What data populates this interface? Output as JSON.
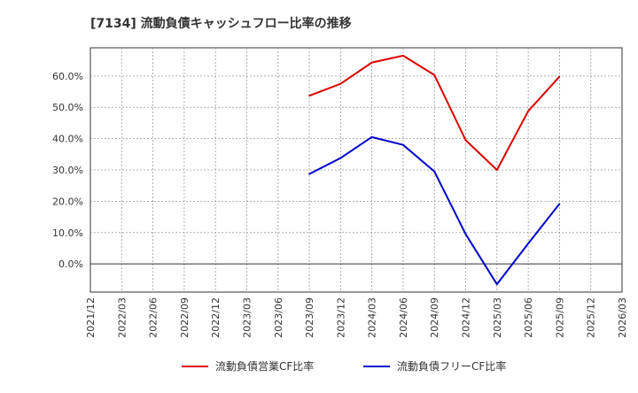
{
  "chart_data": {
    "type": "line",
    "title": "[7134]  流動負債キャッシュフロー比率の推移",
    "xlabel": "",
    "ylabel": "",
    "x_ticks": [
      "2021/12",
      "2022/03",
      "2022/06",
      "2022/09",
      "2022/12",
      "2023/03",
      "2023/06",
      "2023/09",
      "2023/12",
      "2024/03",
      "2024/06",
      "2024/09",
      "2024/12",
      "2025/03",
      "2025/06",
      "2025/09",
      "2025/12",
      "2026/03"
    ],
    "y_ticks": [
      "0.0%",
      "10.0%",
      "20.0%",
      "30.0%",
      "40.0%",
      "50.0%",
      "60.0%"
    ],
    "y_tick_values": [
      0,
      10,
      20,
      30,
      40,
      50,
      60
    ],
    "ylim": [
      -9,
      69
    ],
    "grid": true,
    "legend_position": "bottom",
    "series": [
      {
        "name": "流動負債営業CF比率",
        "color": "#dd0000",
        "points": [
          {
            "x": "2023/09",
            "y": 53.7
          },
          {
            "x": "2023/12",
            "y": 57.5
          },
          {
            "x": "2024/03",
            "y": 64.3
          },
          {
            "x": "2024/06",
            "y": 66.5
          },
          {
            "x": "2024/09",
            "y": 60.3
          },
          {
            "x": "2024/12",
            "y": 39.5
          },
          {
            "x": "2025/03",
            "y": 30.0
          },
          {
            "x": "2025/06",
            "y": 48.8
          },
          {
            "x": "2025/09",
            "y": 59.8
          }
        ]
      },
      {
        "name": "流動負債フリーCF比率",
        "color": "#0000cc",
        "points": [
          {
            "x": "2023/09",
            "y": 28.7
          },
          {
            "x": "2023/12",
            "y": 33.8
          },
          {
            "x": "2024/03",
            "y": 40.5
          },
          {
            "x": "2024/06",
            "y": 38.0
          },
          {
            "x": "2024/09",
            "y": 29.5
          },
          {
            "x": "2024/12",
            "y": 9.5
          },
          {
            "x": "2025/03",
            "y": -6.5
          },
          {
            "x": "2025/06",
            "y": 6.5
          },
          {
            "x": "2025/09",
            "y": 19.2
          }
        ]
      }
    ]
  }
}
